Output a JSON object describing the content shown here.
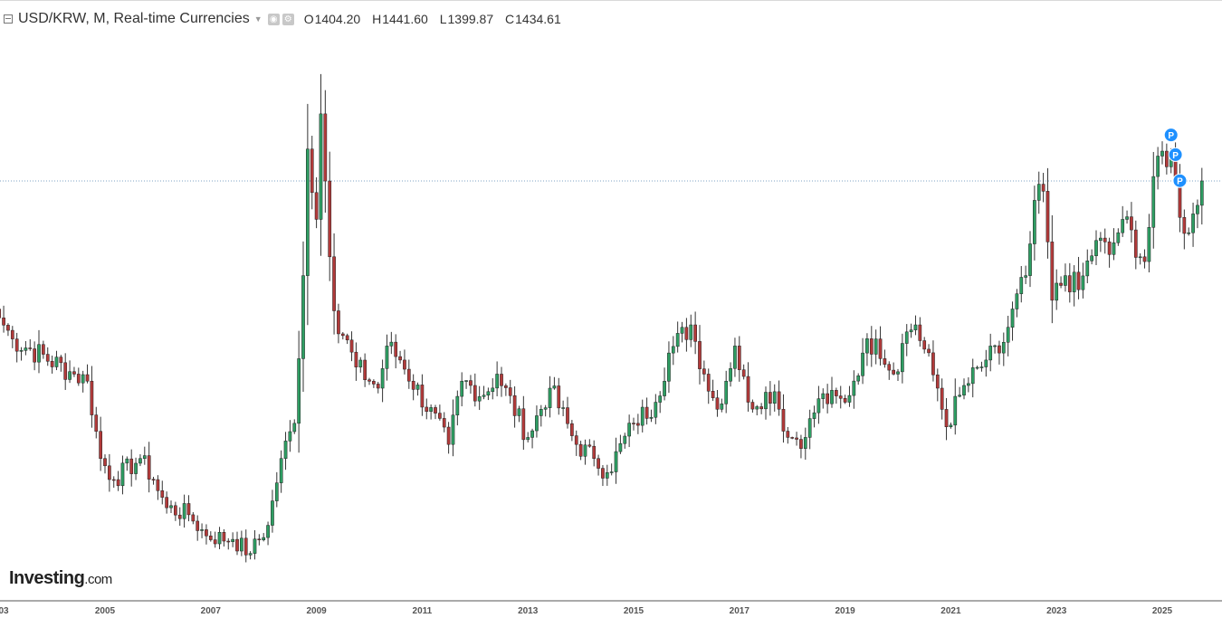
{
  "legend": {
    "title": "USD/KRW, M, Real-time Currencies",
    "o_label": "O",
    "o_value": "1404.20",
    "h_label": "H",
    "h_value": "1441.60",
    "l_label": "L",
    "l_value": "1399.87",
    "c_label": "C",
    "c_value": "1434.61"
  },
  "logo": {
    "main": "Investing",
    "suffix": ".com"
  },
  "colors": {
    "up": "#2e9e63",
    "down": "#b23a3a",
    "wick": "#333333",
    "marker": "#1e90ff",
    "axis": "#555555",
    "last_price_line": "#7fa3c4"
  },
  "chart_data": {
    "type": "candlestick",
    "title": "USD/KRW, M, Real-time Currencies",
    "xlabel": "",
    "ylabel": "",
    "x_ticks": [
      "03",
      "2005",
      "2007",
      "2009",
      "2011",
      "2013",
      "2015",
      "2017",
      "2019",
      "2021",
      "2023",
      "2025"
    ],
    "grid": false,
    "last_price": 1434.61,
    "anchors": [
      {
        "t": "2003-01",
        "v": 1240
      },
      {
        "t": "2003-04",
        "v": 1210
      },
      {
        "t": "2004-06",
        "v": 1160
      },
      {
        "t": "2004-09",
        "v": 1150
      },
      {
        "t": "2004-12",
        "v": 1040
      },
      {
        "t": "2005-03",
        "v": 1010
      },
      {
        "t": "2005-09",
        "v": 1040
      },
      {
        "t": "2005-12",
        "v": 1010
      },
      {
        "t": "2006-03",
        "v": 970
      },
      {
        "t": "2006-08",
        "v": 960
      },
      {
        "t": "2006-12",
        "v": 930
      },
      {
        "t": "2007-06",
        "v": 925
      },
      {
        "t": "2007-10",
        "v": 905
      },
      {
        "t": "2008-02",
        "v": 945
      },
      {
        "t": "2008-05",
        "v": 1040
      },
      {
        "t": "2008-08",
        "v": 1090
      },
      {
        "t": "2008-10",
        "v": 1300
      },
      {
        "t": "2008-11",
        "v": 1480
      },
      {
        "t": "2009-01",
        "v": 1380
      },
      {
        "t": "2009-02",
        "v": 1530
      },
      {
        "t": "2009-05",
        "v": 1250
      },
      {
        "t": "2009-10",
        "v": 1170
      },
      {
        "t": "2010-03",
        "v": 1140
      },
      {
        "t": "2010-05",
        "v": 1200
      },
      {
        "t": "2010-08",
        "v": 1180
      },
      {
        "t": "2011-07",
        "v": 1060
      },
      {
        "t": "2011-10",
        "v": 1150
      },
      {
        "t": "2012-03",
        "v": 1130
      },
      {
        "t": "2012-06",
        "v": 1160
      },
      {
        "t": "2013-01",
        "v": 1070
      },
      {
        "t": "2013-06",
        "v": 1140
      },
      {
        "t": "2013-12",
        "v": 1060
      },
      {
        "t": "2014-04",
        "v": 1040
      },
      {
        "t": "2014-07",
        "v": 1020
      },
      {
        "t": "2015-01",
        "v": 1090
      },
      {
        "t": "2015-06",
        "v": 1120
      },
      {
        "t": "2015-09",
        "v": 1190
      },
      {
        "t": "2016-02",
        "v": 1230
      },
      {
        "t": "2016-05",
        "v": 1160
      },
      {
        "t": "2016-08",
        "v": 1110
      },
      {
        "t": "2016-12",
        "v": 1200
      },
      {
        "t": "2017-03",
        "v": 1120
      },
      {
        "t": "2017-09",
        "v": 1135
      },
      {
        "t": "2017-12",
        "v": 1070
      },
      {
        "t": "2018-04",
        "v": 1070
      },
      {
        "t": "2018-07",
        "v": 1125
      },
      {
        "t": "2019-01",
        "v": 1120
      },
      {
        "t": "2019-05",
        "v": 1190
      },
      {
        "t": "2019-08",
        "v": 1210
      },
      {
        "t": "2019-12",
        "v": 1160
      },
      {
        "t": "2020-03",
        "v": 1220
      },
      {
        "t": "2020-05",
        "v": 1230
      },
      {
        "t": "2020-10",
        "v": 1140
      },
      {
        "t": "2020-12",
        "v": 1085
      },
      {
        "t": "2021-03",
        "v": 1130
      },
      {
        "t": "2021-09",
        "v": 1180
      },
      {
        "t": "2021-12",
        "v": 1190
      },
      {
        "t": "2022-06",
        "v": 1300
      },
      {
        "t": "2022-09",
        "v": 1430
      },
      {
        "t": "2022-10",
        "v": 1420
      },
      {
        "t": "2022-12",
        "v": 1265
      },
      {
        "t": "2023-03",
        "v": 1300
      },
      {
        "t": "2023-06",
        "v": 1280
      },
      {
        "t": "2023-10",
        "v": 1350
      },
      {
        "t": "2024-01",
        "v": 1330
      },
      {
        "t": "2024-04",
        "v": 1380
      },
      {
        "t": "2024-09",
        "v": 1320
      },
      {
        "t": "2024-12",
        "v": 1470
      },
      {
        "t": "2025-03",
        "v": 1470
      },
      {
        "t": "2025-06",
        "v": 1360
      },
      {
        "t": "2025-09",
        "v": 1400
      },
      {
        "t": "2025-10",
        "v": 1434.61
      }
    ],
    "price_markers": [
      {
        "t": "2025-03",
        "v": 1500
      },
      {
        "t": "2025-04",
        "v": 1472
      },
      {
        "t": "2025-05",
        "v": 1435
      }
    ],
    "marker_label": "P"
  }
}
